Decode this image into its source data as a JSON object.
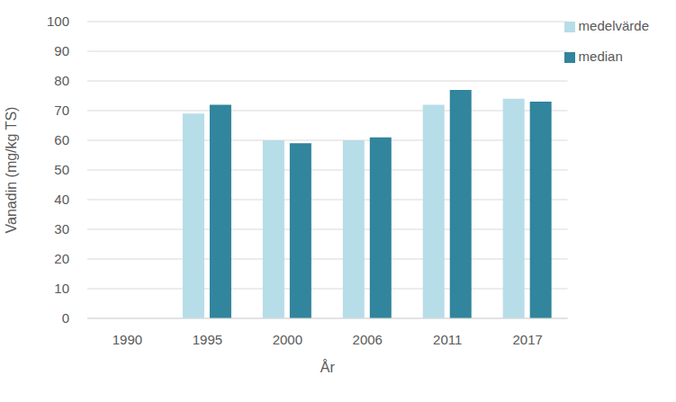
{
  "chart_data": {
    "type": "bar",
    "categories": [
      "1990",
      "1995",
      "2000",
      "2006",
      "2011",
      "2017"
    ],
    "series": [
      {
        "name": "medelvärde",
        "color": "#b7dde8",
        "values": [
          null,
          69,
          60,
          60,
          72,
          74
        ]
      },
      {
        "name": "median",
        "color": "#31859c",
        "values": [
          null,
          72,
          59,
          61,
          77,
          73
        ]
      }
    ],
    "x_label": "År",
    "y_label": "Vanadin (mg/kg TS)",
    "ylim": [
      0,
      100
    ],
    "yticks": [
      0,
      10,
      20,
      30,
      40,
      50,
      60,
      70,
      80,
      90,
      100
    ],
    "grid": true,
    "legend": "upper right"
  }
}
